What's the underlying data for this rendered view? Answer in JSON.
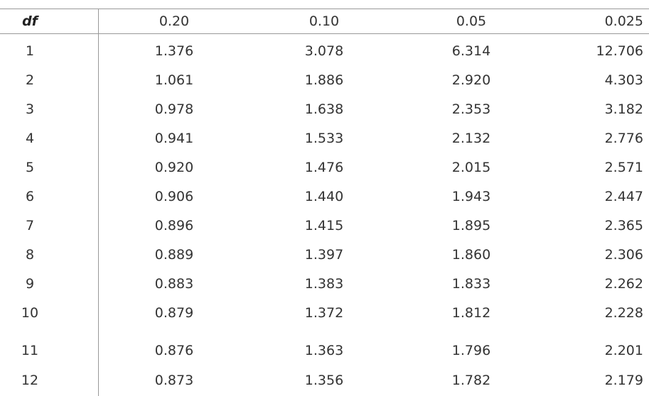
{
  "table": {
    "header": [
      "df",
      "0.20",
      "0.10",
      "0.05",
      "0.025"
    ],
    "rows": [
      [
        "1",
        "1.376",
        "3.078",
        "6.314",
        "12.706"
      ],
      [
        "2",
        "1.061",
        "1.886",
        "2.920",
        "4.303"
      ],
      [
        "3",
        "0.978",
        "1.638",
        "2.353",
        "3.182"
      ],
      [
        "4",
        "0.941",
        "1.533",
        "2.132",
        "2.776"
      ],
      [
        "5",
        "0.920",
        "1.476",
        "2.015",
        "2.571"
      ],
      [
        "6",
        "0.906",
        "1.440",
        "1.943",
        "2.447"
      ],
      [
        "7",
        "0.896",
        "1.415",
        "1.895",
        "2.365"
      ],
      [
        "8",
        "0.889",
        "1.397",
        "1.860",
        "2.306"
      ],
      [
        "9",
        "0.883",
        "1.383",
        "1.833",
        "2.262"
      ],
      [
        "10",
        "0.879",
        "1.372",
        "1.812",
        "2.228"
      ],
      [
        "11",
        "0.876",
        "1.363",
        "1.796",
        "2.201"
      ],
      [
        "12",
        "0.873",
        "1.356",
        "1.782",
        "2.179"
      ]
    ]
  }
}
